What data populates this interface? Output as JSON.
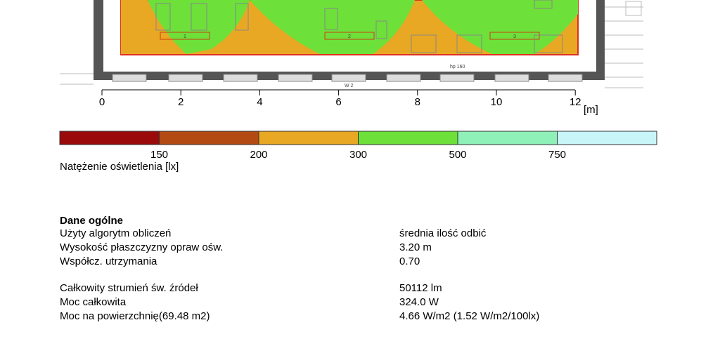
{
  "plan": {
    "zone_labels": [
      "1",
      "2",
      "3"
    ],
    "notes": [
      "hp 160",
      "W 2"
    ]
  },
  "scale": {
    "ticks": [
      "0",
      "2",
      "4",
      "6",
      "8",
      "10",
      "12"
    ],
    "unit": "[m]"
  },
  "legend": {
    "labels": [
      "150",
      "200",
      "300",
      "500",
      "750"
    ],
    "caption": "Natężenie oświetlenia [lx]"
  },
  "general": {
    "title": "Dane ogólne",
    "groups": [
      [
        [
          "Użyty algorytm obliczeń",
          "średnia ilość odbić"
        ],
        [
          "Wysokość płaszczyzny opraw ośw.",
          "3.20 m"
        ],
        [
          "Współcz. utrzymania",
          "0.70"
        ]
      ],
      [
        [
          "Całkowity strumień św. źródeł",
          "50112 lm"
        ],
        [
          "Moc całkowita",
          "324.0 W"
        ],
        [
          "Moc na powierzchnię(69.48 m2)",
          "4.66 W/m2 (1.52 W/m2/100lx)"
        ]
      ]
    ]
  }
}
